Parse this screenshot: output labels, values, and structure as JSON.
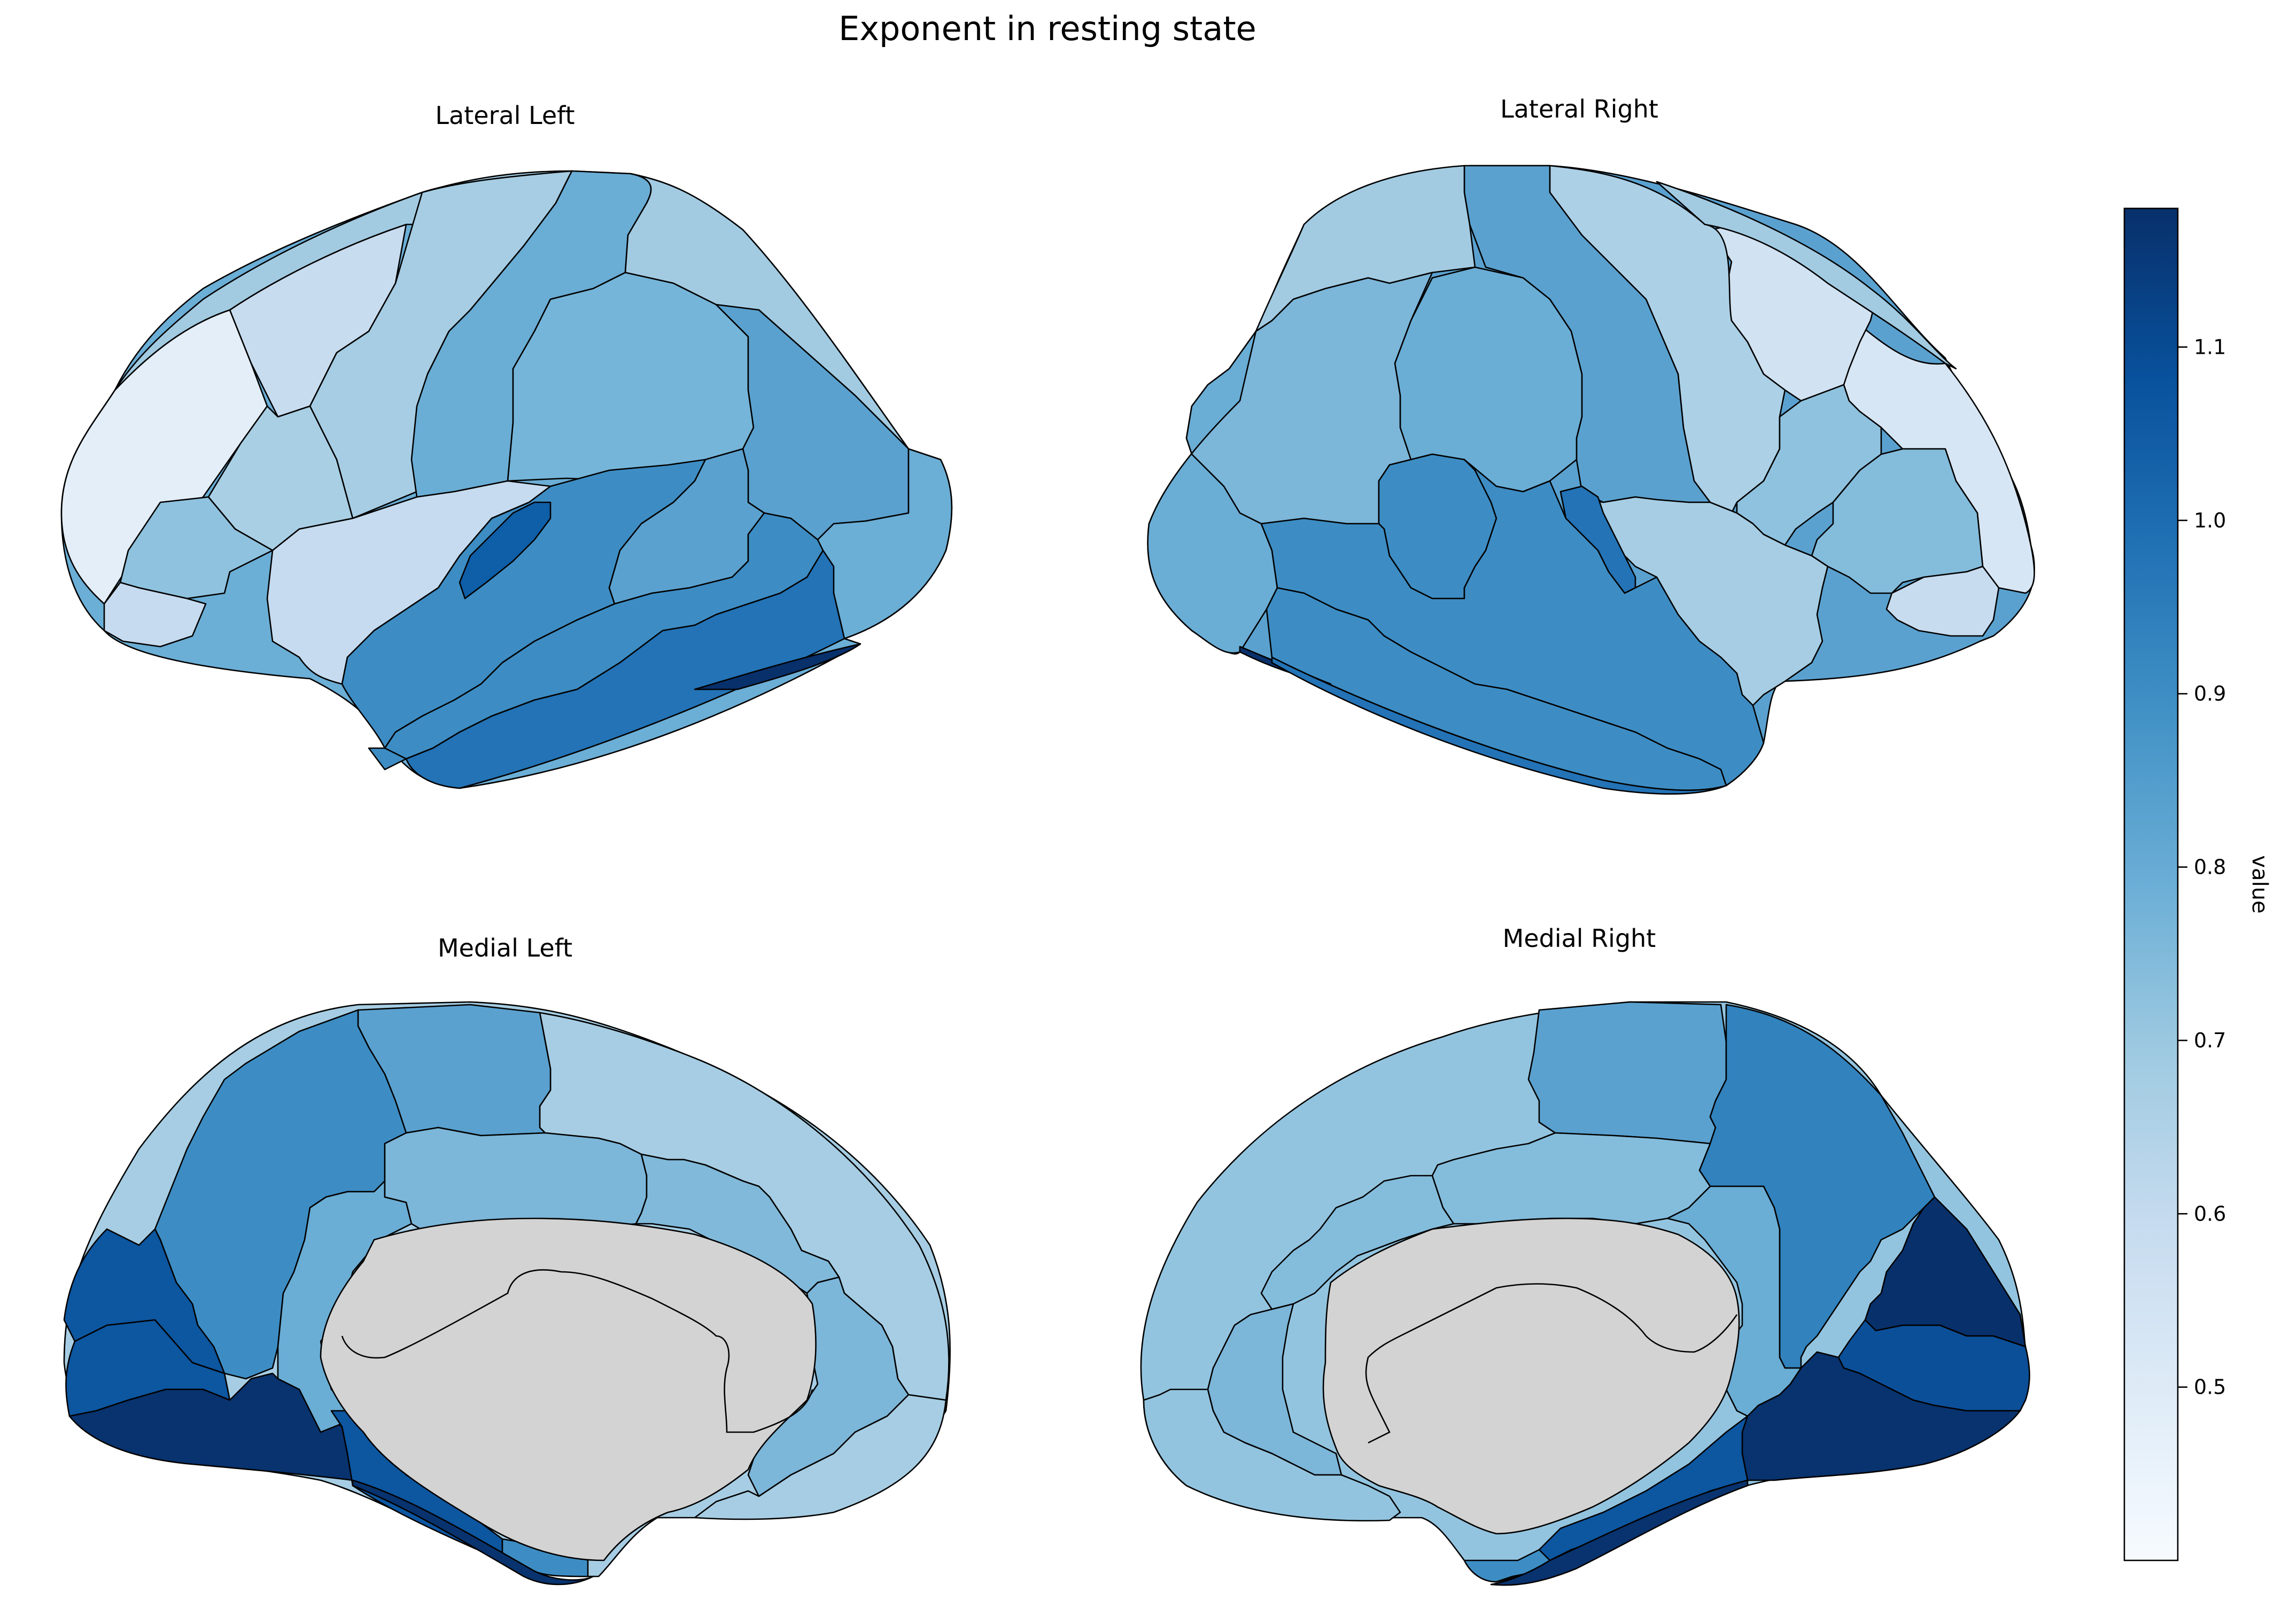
{
  "title": "Exponent in resting state",
  "colorbar": {
    "label": "value",
    "ticks": [
      "0.5",
      "0.6",
      "0.7",
      "0.8",
      "0.9",
      "1.0",
      "1.1"
    ],
    "tick_values": [
      0.5,
      0.6,
      0.7,
      0.8,
      0.9,
      1.0,
      1.1
    ],
    "vmin": 0.4,
    "vmax": 1.18,
    "colormap": "Blues",
    "stops": [
      "#f7fbff",
      "#deebf7",
      "#c6dbef",
      "#9ecae1",
      "#6baed6",
      "#4292c6",
      "#2171b5",
      "#08519c",
      "#08306b"
    ]
  },
  "medial_wall_color": "#d3d3d3",
  "views": [
    {
      "id": "lateral-left",
      "label": "Lateral Left"
    },
    {
      "id": "lateral-right",
      "label": "Lateral Right"
    },
    {
      "id": "medial-left",
      "label": "Medial Left"
    },
    {
      "id": "medial-right",
      "label": "Medial Right"
    }
  ]
}
